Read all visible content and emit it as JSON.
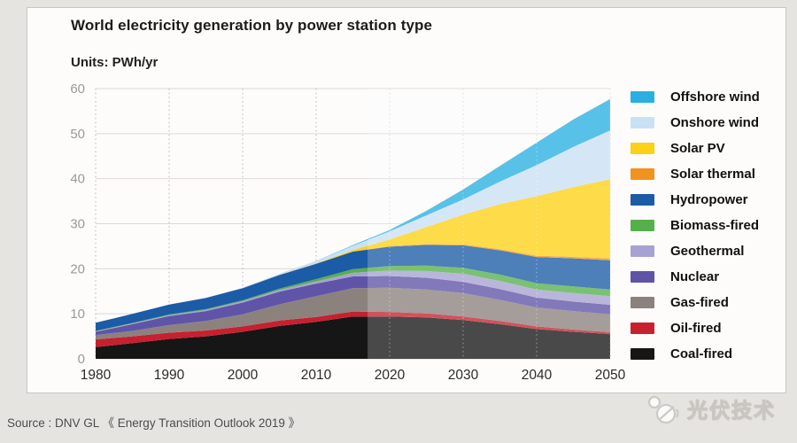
{
  "page": {
    "background": "#e6e4e1",
    "card_background": "#fdfcfb"
  },
  "header": {
    "title": "World electricity generation by power station type",
    "units_label": "Units: PWh/yr"
  },
  "footer": {
    "source": "Source : DNV GL 《 Energy Transition Outlook 2019 》",
    "watermark": "光伏技术"
  },
  "chart_data": {
    "type": "area",
    "stacked": true,
    "title": "World electricity generation by power station type",
    "ylabel": "PWh/yr",
    "xlabel": "",
    "grid": true,
    "legend_position": "right",
    "ylim": [
      0,
      60
    ],
    "yticks": [
      0,
      10,
      20,
      30,
      40,
      50,
      60
    ],
    "xticks": [
      1980,
      1990,
      2000,
      2010,
      2020,
      2030,
      2040,
      2050
    ],
    "history_end_year": 2017,
    "forecast_overlay_color": "rgba(255,255,255,0.22)",
    "x": [
      1980,
      1985,
      1990,
      1995,
      2000,
      2005,
      2010,
      2015,
      2020,
      2025,
      2030,
      2035,
      2040,
      2045,
      2050
    ],
    "series": [
      {
        "name": "Offshore wind",
        "color": "#29b0e0",
        "values": [
          0,
          0,
          0,
          0,
          0,
          0.01,
          0.05,
          0.1,
          0.3,
          1.0,
          2.2,
          3.5,
          5.0,
          6.1,
          7.0
        ]
      },
      {
        "name": "Onshore wind",
        "color": "#c9e1f4",
        "values": [
          0,
          0,
          0,
          0.05,
          0.1,
          0.2,
          0.5,
          1.0,
          1.8,
          2.6,
          3.4,
          5.0,
          6.9,
          8.9,
          10.8
        ]
      },
      {
        "name": "Solar PV",
        "color": "#fdd116",
        "values": [
          0,
          0,
          0,
          0,
          0,
          0.01,
          0.05,
          0.3,
          1.5,
          3.8,
          6.6,
          10.0,
          13.2,
          15.5,
          17.6
        ]
      },
      {
        "name": "Solar thermal",
        "color": "#f0931f",
        "values": [
          0,
          0,
          0,
          0,
          0,
          0,
          0.02,
          0.05,
          0.1,
          0.15,
          0.2,
          0.25,
          0.3,
          0.35,
          0.4
        ]
      },
      {
        "name": "Hydropower",
        "color": "#1c5ba6",
        "values": [
          1.8,
          2.0,
          2.2,
          2.5,
          2.7,
          3.0,
          3.4,
          3.9,
          4.3,
          4.6,
          5.0,
          5.4,
          5.8,
          6.2,
          6.5
        ]
      },
      {
        "name": "Biomass-fired",
        "color": "#55b04b",
        "values": [
          0.1,
          0.12,
          0.15,
          0.18,
          0.2,
          0.3,
          0.5,
          0.8,
          1.0,
          1.2,
          1.3,
          1.4,
          1.4,
          1.5,
          1.5
        ]
      },
      {
        "name": "Geothermal",
        "color": "#a7a2d1",
        "values": [
          0.1,
          0.15,
          0.2,
          0.25,
          0.3,
          0.4,
          0.5,
          0.8,
          1.2,
          1.5,
          1.8,
          1.8,
          1.8,
          1.9,
          1.9
        ]
      },
      {
        "name": "Nuclear",
        "color": "#5f54a7",
        "values": [
          0.7,
          1.5,
          2.0,
          2.2,
          2.6,
          2.8,
          2.8,
          2.6,
          2.6,
          2.6,
          2.5,
          2.4,
          2.2,
          2.1,
          2.1
        ]
      },
      {
        "name": "Gas-fired",
        "color": "#8b827d",
        "values": [
          1.0,
          1.2,
          1.7,
          2.1,
          2.7,
          3.6,
          4.6,
          5.2,
          5.4,
          5.3,
          5.2,
          4.7,
          4.2,
          4.1,
          4.0
        ]
      },
      {
        "name": "Oil-fired",
        "color": "#c8202f",
        "values": [
          1.7,
          1.5,
          1.4,
          1.3,
          1.2,
          1.2,
          1.1,
          1.1,
          1.0,
          0.9,
          0.8,
          0.7,
          0.6,
          0.5,
          0.4
        ]
      },
      {
        "name": "Coal-fired",
        "color": "#161616",
        "values": [
          2.6,
          3.5,
          4.4,
          5.0,
          6.0,
          7.3,
          8.2,
          9.4,
          9.4,
          9.2,
          8.6,
          7.7,
          6.6,
          6.0,
          5.5
        ]
      }
    ]
  }
}
